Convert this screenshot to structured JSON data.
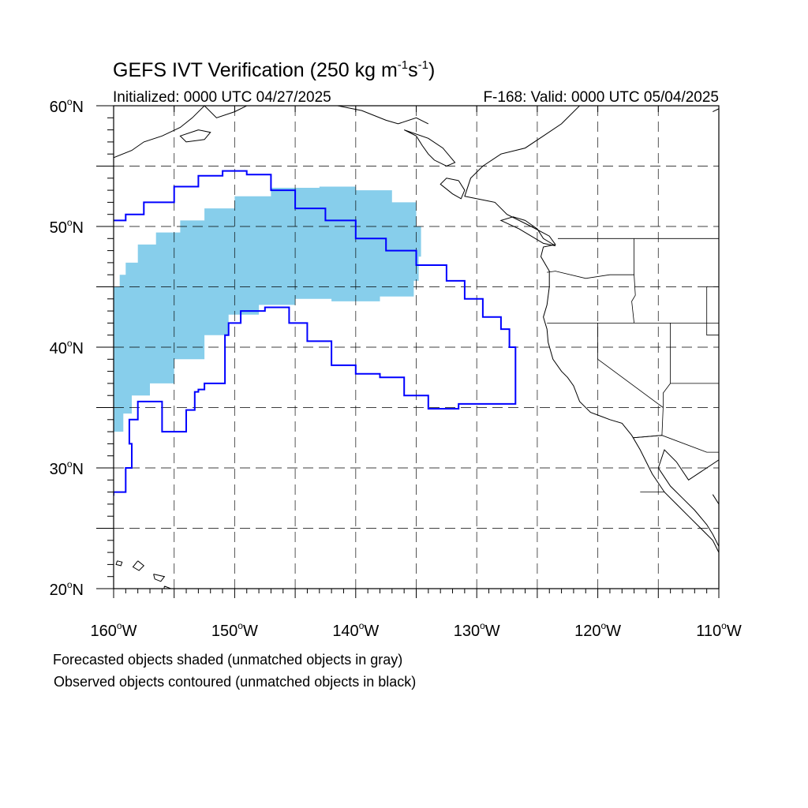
{
  "title": {
    "main": "GEFS IVT Verification (250 kg m",
    "sup1": "-1",
    "mid": "s",
    "sup2": "-1",
    "end": ")"
  },
  "init_label": "Initialized: 0000 UTC 04/27/2025",
  "valid_label": "F-168: Valid: 0000 UTC 05/04/2025",
  "notes": {
    "forecast": "Forecasted objects shaded (unmatched objects in gray)",
    "observed": "Observed objects contoured (unmatched objects in black)"
  },
  "colors": {
    "forecast_fill": "#87ceeb",
    "observed_contour": "#0000ff",
    "coast": "#000000",
    "grid": "#000000"
  },
  "chart_data": {
    "type": "map",
    "projection": "equirectangular",
    "lon_range": [
      -160,
      -110
    ],
    "lat_range": [
      20,
      60
    ],
    "grid": "dashed every 5 degrees",
    "lon_ticks": [
      {
        "value": -160,
        "label": "160",
        "hemi": "W"
      },
      {
        "value": -150,
        "label": "150",
        "hemi": "W"
      },
      {
        "value": -140,
        "label": "140",
        "hemi": "W"
      },
      {
        "value": -130,
        "label": "130",
        "hemi": "W"
      },
      {
        "value": -120,
        "label": "120",
        "hemi": "W"
      },
      {
        "value": -110,
        "label": "110",
        "hemi": "W"
      }
    ],
    "lat_ticks": [
      {
        "value": 60,
        "label": "60",
        "hemi": "N"
      },
      {
        "value": 50,
        "label": "50",
        "hemi": "N"
      },
      {
        "value": 40,
        "label": "40",
        "hemi": "N"
      },
      {
        "value": 30,
        "label": "30",
        "hemi": "N"
      },
      {
        "value": 20,
        "label": "20",
        "hemi": "N"
      }
    ],
    "forecast_object": {
      "status": "matched",
      "polygon": [
        [
          -160.0,
          45.0
        ],
        [
          -159.5,
          46.0
        ],
        [
          -159.0,
          47.0
        ],
        [
          -158.0,
          48.5
        ],
        [
          -156.5,
          49.5
        ],
        [
          -154.5,
          50.5
        ],
        [
          -152.5,
          51.5
        ],
        [
          -150.0,
          52.5
        ],
        [
          -147.0,
          53.2
        ],
        [
          -143.0,
          53.3
        ],
        [
          -140.0,
          53.0
        ],
        [
          -137.0,
          52.0
        ],
        [
          -135.0,
          50.0
        ],
        [
          -134.6,
          47.5
        ],
        [
          -134.8,
          45.5
        ],
        [
          -135.2,
          44.2
        ],
        [
          -138.0,
          43.8
        ],
        [
          -142.0,
          44.0
        ],
        [
          -145.0,
          43.5
        ],
        [
          -148.0,
          42.7
        ],
        [
          -150.5,
          41.0
        ],
        [
          -152.5,
          39.0
        ],
        [
          -155.0,
          37.0
        ],
        [
          -157.0,
          36.0
        ],
        [
          -158.5,
          34.5
        ],
        [
          -159.2,
          33.0
        ],
        [
          -160.0,
          32.8
        ]
      ]
    },
    "observed_object": {
      "status": "matched",
      "polygon": [
        [
          -160.0,
          50.5
        ],
        [
          -159.0,
          51.0
        ],
        [
          -157.5,
          52.0
        ],
        [
          -155.0,
          53.3
        ],
        [
          -153.0,
          54.2
        ],
        [
          -151.0,
          54.6
        ],
        [
          -149.0,
          54.3
        ],
        [
          -147.0,
          53.0
        ],
        [
          -145.0,
          51.5
        ],
        [
          -142.5,
          50.5
        ],
        [
          -140.0,
          49.0
        ],
        [
          -137.5,
          48.0
        ],
        [
          -135.0,
          46.8
        ],
        [
          -132.5,
          45.5
        ],
        [
          -131.0,
          44.0
        ],
        [
          -129.5,
          42.5
        ],
        [
          -128.0,
          41.5
        ],
        [
          -127.3,
          40.0
        ],
        [
          -126.8,
          37.5
        ],
        [
          -126.8,
          35.3
        ],
        [
          -129.0,
          35.3
        ],
        [
          -131.5,
          34.9
        ],
        [
          -134.0,
          36.0
        ],
        [
          -136.0,
          37.5
        ],
        [
          -138.0,
          37.8
        ],
        [
          -140.0,
          38.5
        ],
        [
          -142.0,
          40.5
        ],
        [
          -144.0,
          42.0
        ],
        [
          -145.5,
          43.3
        ],
        [
          -147.5,
          43.0
        ],
        [
          -149.5,
          42.0
        ],
        [
          -150.5,
          41.0
        ],
        [
          -150.8,
          37.0
        ],
        [
          -152.5,
          36.5
        ],
        [
          -153.0,
          36.3
        ],
        [
          -153.3,
          34.8
        ],
        [
          -154.0,
          33.0
        ],
        [
          -155.8,
          33.0
        ],
        [
          -156.0,
          35.5
        ],
        [
          -157.0,
          35.5
        ],
        [
          -158.0,
          34.0
        ],
        [
          -158.7,
          32.0
        ],
        [
          -158.5,
          30.0
        ],
        [
          -159.0,
          28.0
        ],
        [
          -160.0,
          27.7
        ]
      ]
    },
    "coastlines": [
      [
        [
          -121.0,
          61.0
        ],
        [
          -121.5,
          60.0
        ],
        [
          -123.0,
          58.5
        ],
        [
          -124.5,
          57.5
        ],
        [
          -126.0,
          56.5
        ],
        [
          -128.0,
          56.0
        ],
        [
          -129.5,
          55.0
        ],
        [
          -130.5,
          54.0
        ],
        [
          -131.0,
          52.5
        ],
        [
          -128.5,
          52.0
        ],
        [
          -127.5,
          51.0
        ],
        [
          -125.5,
          50.0
        ],
        [
          -124.0,
          49.2
        ],
        [
          -123.5,
          48.5
        ],
        [
          -124.5,
          48.3
        ],
        [
          -124.7,
          47.5
        ],
        [
          -124.0,
          46.3
        ],
        [
          -124.0,
          45.0
        ],
        [
          -124.2,
          43.5
        ],
        [
          -124.5,
          42.5
        ],
        [
          -124.2,
          41.5
        ],
        [
          -124.1,
          40.4
        ],
        [
          -123.7,
          39.0
        ],
        [
          -123.0,
          38.0
        ],
        [
          -122.5,
          37.5
        ],
        [
          -122.0,
          36.8
        ],
        [
          -121.5,
          35.5
        ],
        [
          -120.6,
          34.6
        ],
        [
          -119.0,
          34.0
        ],
        [
          -118.0,
          33.7
        ],
        [
          -117.2,
          32.7
        ],
        [
          -116.5,
          31.5
        ],
        [
          -116.0,
          30.5
        ],
        [
          -115.5,
          29.5
        ],
        [
          -114.5,
          28.0
        ],
        [
          -113.5,
          27.0
        ],
        [
          -112.5,
          26.0
        ],
        [
          -111.5,
          25.0
        ],
        [
          -110.5,
          24.0
        ],
        [
          -110.0,
          23.0
        ]
      ],
      [
        [
          -109.5,
          31.0
        ],
        [
          -111.0,
          30.0
        ],
        [
          -112.5,
          29.0
        ],
        [
          -113.5,
          30.5
        ],
        [
          -114.5,
          31.5
        ],
        [
          -115.0,
          30.0
        ],
        [
          -114.0,
          28.5
        ],
        [
          -113.0,
          27.5
        ],
        [
          -112.0,
          26.5
        ],
        [
          -111.0,
          25.3
        ],
        [
          -110.5,
          24.5
        ],
        [
          -110.0,
          23.5
        ],
        [
          -109.5,
          23.0
        ]
      ],
      [
        [
          -110.5,
          27.8
        ],
        [
          -110.0,
          27.0
        ],
        [
          -109.5,
          26.0
        ],
        [
          -109.0,
          25.5
        ]
      ],
      [
        [
          -158.0,
          22.3
        ],
        [
          -157.5,
          21.9
        ],
        [
          -157.9,
          21.5
        ],
        [
          -158.4,
          21.8
        ],
        [
          -158.0,
          22.3
        ]
      ],
      [
        [
          -159.7,
          22.3
        ],
        [
          -159.3,
          22.2
        ],
        [
          -159.4,
          21.9
        ],
        [
          -159.8,
          22.0
        ],
        [
          -159.7,
          22.3
        ]
      ],
      [
        [
          -156.7,
          21.2
        ],
        [
          -155.8,
          21.0
        ],
        [
          -156.1,
          20.6
        ],
        [
          -156.6,
          20.8
        ],
        [
          -156.7,
          21.2
        ]
      ],
      [
        [
          -155.8,
          20.2
        ],
        [
          -155.0,
          19.9
        ],
        [
          -155.3,
          19.3
        ],
        [
          -155.9,
          19.6
        ],
        [
          -155.8,
          20.2
        ]
      ],
      [
        [
          -126.0,
          50.5
        ],
        [
          -125.0,
          49.8
        ],
        [
          -124.5,
          49.0
        ],
        [
          -123.5,
          48.4
        ],
        [
          -124.5,
          48.6
        ],
        [
          -125.5,
          49.2
        ],
        [
          -126.5,
          49.8
        ],
        [
          -128.0,
          50.5
        ],
        [
          -127.0,
          50.8
        ],
        [
          -126.0,
          50.5
        ]
      ],
      [
        [
          -131.5,
          53.8
        ],
        [
          -132.5,
          54.0
        ],
        [
          -133.0,
          53.5
        ],
        [
          -132.0,
          52.7
        ],
        [
          -131.3,
          52.3
        ],
        [
          -131.0,
          53.0
        ],
        [
          -131.5,
          53.8
        ]
      ],
      [
        [
          -134.0,
          58.5
        ],
        [
          -135.0,
          59.0
        ],
        [
          -136.5,
          58.5
        ],
        [
          -137.5,
          58.8
        ],
        [
          -139.5,
          59.6
        ],
        [
          -141.5,
          60.0
        ],
        [
          -143.5,
          60.2
        ],
        [
          -146.0,
          60.8
        ],
        [
          -148.0,
          60.5
        ],
        [
          -150.0,
          59.5
        ],
        [
          -151.5,
          59.0
        ],
        [
          -152.5,
          60.0
        ],
        [
          -153.5,
          59.0
        ],
        [
          -154.5,
          58.2
        ],
        [
          -156.0,
          57.5
        ],
        [
          -157.5,
          57.0
        ],
        [
          -158.5,
          56.3
        ],
        [
          -160.0,
          55.7
        ]
      ],
      [
        [
          -153.0,
          58.0
        ],
        [
          -152.0,
          57.8
        ],
        [
          -152.5,
          57.2
        ],
        [
          -154.0,
          57.0
        ],
        [
          -154.5,
          57.5
        ],
        [
          -153.0,
          58.0
        ]
      ],
      [
        [
          -136.0,
          58.0
        ],
        [
          -135.0,
          57.5
        ],
        [
          -134.5,
          56.7
        ],
        [
          -134.0,
          56.0
        ],
        [
          -133.5,
          55.5
        ],
        [
          -132.5,
          55.0
        ],
        [
          -131.8,
          55.3
        ],
        [
          -132.8,
          56.5
        ],
        [
          -134.0,
          57.3
        ],
        [
          -136.0,
          58.0
        ]
      ],
      [
        [
          -110.5,
          59.5
        ],
        [
          -109.5,
          60.0
        ]
      ]
    ],
    "borders": [
      [
        [
          -141.0,
          60.0
        ],
        [
          -141.0,
          61.0
        ]
      ],
      [
        [
          -123.3,
          49.0
        ],
        [
          -110.0,
          49.0
        ]
      ],
      [
        [
          -117.0,
          49.0
        ],
        [
          -117.0,
          46.0
        ],
        [
          -116.9,
          44.3
        ],
        [
          -117.2,
          43.8
        ],
        [
          -117.0,
          42.0
        ]
      ],
      [
        [
          -124.2,
          46.2
        ],
        [
          -123.5,
          46.3
        ],
        [
          -121.0,
          45.7
        ],
        [
          -119.0,
          46.0
        ],
        [
          -117.0,
          46.0
        ]
      ],
      [
        [
          -124.2,
          42.0
        ],
        [
          -110.0,
          42.0
        ]
      ],
      [
        [
          -120.0,
          42.0
        ],
        [
          -120.0,
          39.0
        ],
        [
          -114.6,
          35.0
        ],
        [
          -114.7,
          32.7
        ],
        [
          -117.1,
          32.5
        ]
      ],
      [
        [
          -114.0,
          42.0
        ],
        [
          -114.0,
          37.0
        ],
        [
          -114.6,
          36.2
        ],
        [
          -114.6,
          35.0
        ]
      ],
      [
        [
          -111.0,
          45.0
        ],
        [
          -110.0,
          45.0
        ]
      ],
      [
        [
          -111.0,
          45.0
        ],
        [
          -111.0,
          41.0
        ],
        [
          -110.0,
          41.0
        ]
      ],
      [
        [
          -114.0,
          37.0
        ],
        [
          -110.0,
          37.0
        ]
      ],
      [
        [
          -117.1,
          32.5
        ],
        [
          -114.7,
          32.7
        ],
        [
          -111.0,
          31.3
        ],
        [
          -110.0,
          31.3
        ]
      ],
      [
        [
          -116.5,
          28.0
        ],
        [
          -114.5,
          28.0
        ]
      ]
    ]
  }
}
